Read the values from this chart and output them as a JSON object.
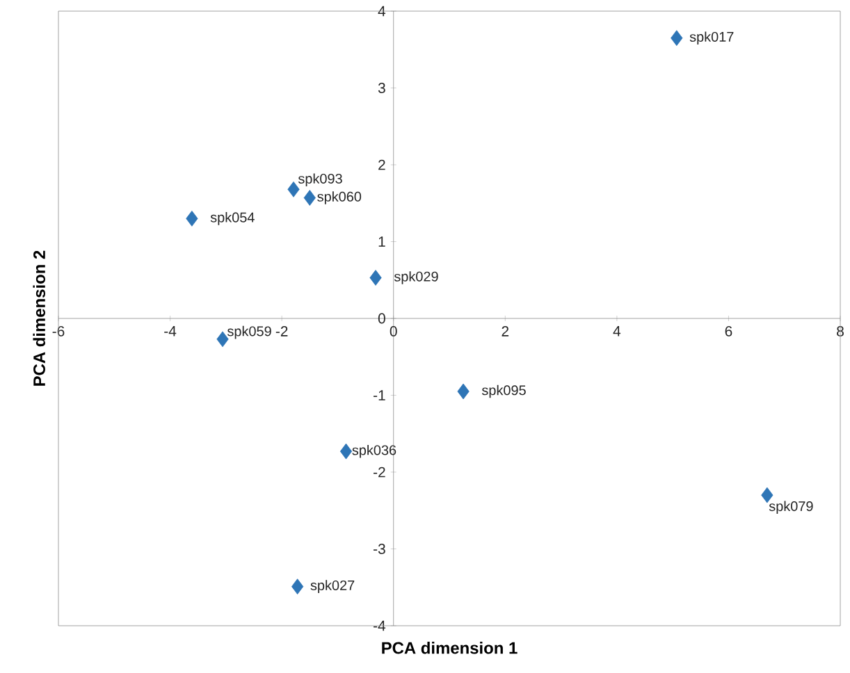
{
  "chart_data": {
    "type": "scatter",
    "xlabel": "PCA dimension 1",
    "ylabel": "PCA dimension 2",
    "x": [
      5.07,
      -1.79,
      -1.5,
      -3.61,
      -0.32,
      -3.06,
      1.25,
      -0.85,
      6.69,
      -1.72
    ],
    "values": [
      3.65,
      1.68,
      1.57,
      1.3,
      0.53,
      -0.27,
      -0.95,
      -1.73,
      -2.3,
      -3.49
    ],
    "color": "#2e75b6",
    "marker": "diamond",
    "xlim": [
      -6,
      8
    ],
    "ylim": [
      -4,
      4
    ],
    "xticks": [
      -6,
      -4,
      -2,
      0,
      2,
      4,
      6,
      8
    ],
    "yticks": [
      -4,
      -3,
      -2,
      -1,
      0,
      1,
      2,
      3,
      4
    ],
    "annotations": [
      {
        "text": "spk017",
        "x": 5.07,
        "y": 3.65
      },
      {
        "text": "spk093",
        "x": -1.79,
        "y": 1.68
      },
      {
        "text": "spk060",
        "x": -1.5,
        "y": 1.57
      },
      {
        "text": "spk054",
        "x": -3.61,
        "y": 1.3
      },
      {
        "text": "spk029",
        "x": -0.32,
        "y": 0.53
      },
      {
        "text": "spk059",
        "x": -3.06,
        "y": -0.27
      },
      {
        "text": "spk095",
        "x": 1.25,
        "y": -0.95
      },
      {
        "text": "spk036",
        "x": -0.85,
        "y": -1.73
      },
      {
        "text": "spk079",
        "x": 6.69,
        "y": -2.3
      },
      {
        "text": "spk027",
        "x": -1.72,
        "y": -3.49
      }
    ]
  }
}
